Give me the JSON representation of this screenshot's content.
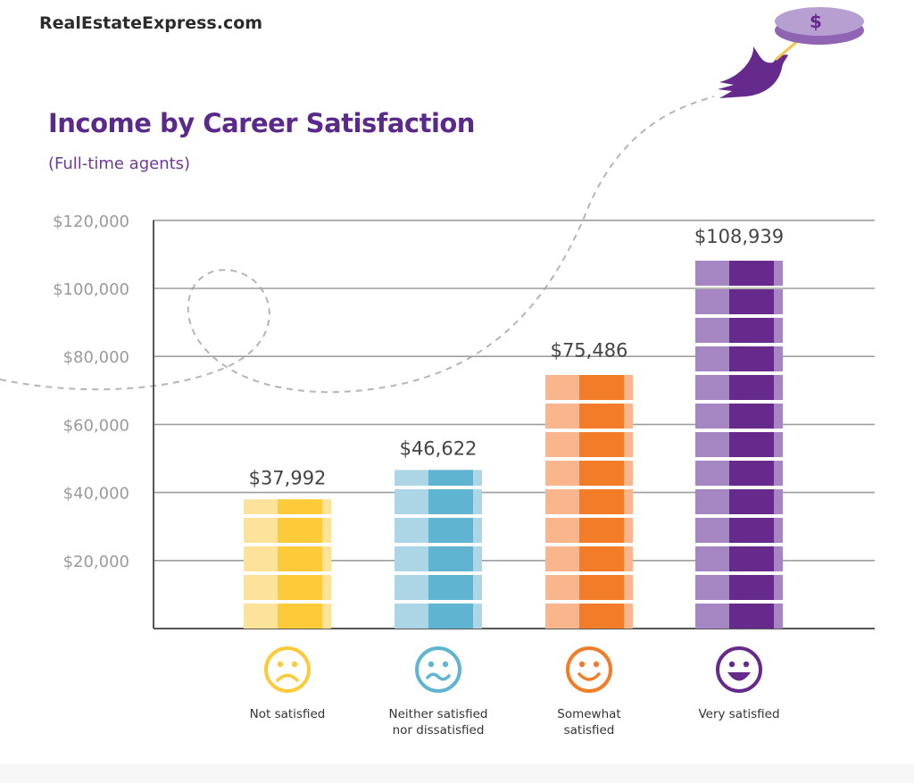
{
  "brand": "RealEstateExpress.com",
  "chart_data": {
    "type": "bar",
    "title": "Income by Career Satisfaction",
    "subtitle": "(Full-time agents)",
    "categories": [
      "Not satisfied",
      "Neither satisfied nor dissatisfied",
      "Somewhat satisfied",
      "Very satisfied"
    ],
    "category_lines": [
      [
        "Not satisfied"
      ],
      [
        "Neither satisfied",
        "nor dissatisfied"
      ],
      [
        "Somewhat",
        "satisfied"
      ],
      [
        "Very satisfied"
      ]
    ],
    "values": [
      37992,
      46622,
      75486,
      108939
    ],
    "value_labels": [
      "$37,992",
      "$46,622",
      "$75,486",
      "$108,939"
    ],
    "yticks": [
      20000,
      40000,
      60000,
      80000,
      100000,
      120000
    ],
    "ytick_labels": [
      "$20,000",
      "$40,000",
      "$60,000",
      "$80,000",
      "$100,000",
      "$120,000"
    ],
    "ylim": [
      0,
      120000
    ],
    "grid": true,
    "colors": [
      {
        "light": "#fde299",
        "dark": "#fdcb3a"
      },
      {
        "light": "#acd6e6",
        "dark": "#5fb4d1"
      },
      {
        "light": "#f9b58c",
        "dark": "#f37c29"
      },
      {
        "light": "#a585c2",
        "dark": "#662a8c"
      }
    ],
    "icons": [
      "sad-face-icon",
      "uneasy-face-icon",
      "smile-face-icon",
      "big-grin-face-icon"
    ]
  },
  "decor": {
    "coin_symbol": "$"
  }
}
